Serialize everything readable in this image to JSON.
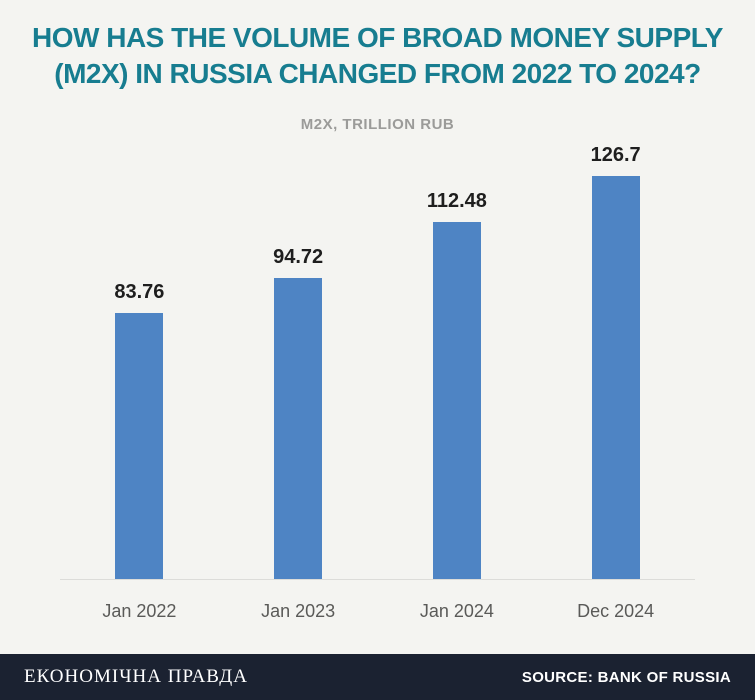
{
  "header": {
    "title_line1": "HOW HAS THE VOLUME OF BROAD MONEY SUPPLY",
    "title_line2": "(M2X) IN RUSSIA CHANGED FROM 2022 TO 2024?",
    "subtitle": "M2X, TRILLION RUB"
  },
  "chart_data": {
    "type": "bar",
    "title": "HOW HAS THE VOLUME OF BROAD MONEY SUPPLY (M2X) IN RUSSIA CHANGED FROM 2022 TO 2024?",
    "subtitle": "M2X, TRILLION RUB",
    "categories": [
      "Jan 2022",
      "Jan 2023",
      "Jan 2024",
      "Dec 2024"
    ],
    "values": [
      83.76,
      94.72,
      112.48,
      126.7
    ],
    "value_labels": [
      "83.76",
      "94.72",
      "112.48",
      "126.7"
    ],
    "xlabel": "",
    "ylabel": "M2X, trillion RUB",
    "ylim": [
      0,
      135
    ],
    "grid": false,
    "legend": false,
    "bar_color": "#4e84c4"
  },
  "footer": {
    "brand": "ЕКОНОМІЧНА ПРАВДА",
    "source": "SOURCE: BANK OF RUSSIA"
  },
  "colors": {
    "background": "#f4f4f1",
    "title": "#177d90",
    "subtitle": "#9b9b99",
    "bar": "#4e84c4",
    "value_label": "#1e1e1e",
    "axis_label": "#5a5a58",
    "baseline": "#dcdcd9",
    "footer_background": "#1b2231",
    "footer_text": "#ffffff"
  }
}
